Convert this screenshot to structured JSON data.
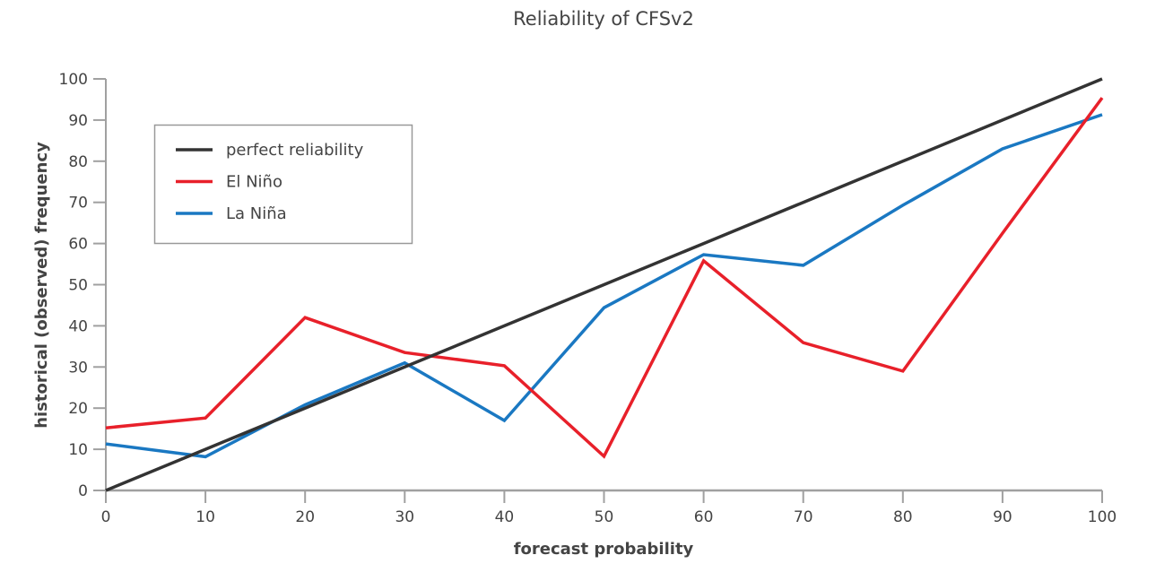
{
  "chart_data": {
    "type": "line",
    "title": "Reliability of CFSv2",
    "xlabel": "forecast probability",
    "ylabel": "historical (observed) frequency",
    "xlim": [
      0,
      100
    ],
    "ylim": [
      0,
      100
    ],
    "x": [
      0,
      10,
      20,
      30,
      40,
      50,
      60,
      70,
      80,
      90,
      100
    ],
    "xticks": [
      0,
      10,
      20,
      30,
      40,
      50,
      60,
      70,
      80,
      90,
      100
    ],
    "yticks": [
      0,
      10,
      20,
      30,
      40,
      50,
      60,
      70,
      80,
      90,
      100
    ],
    "grid": false,
    "legend_position": "top-left",
    "series": [
      {
        "name": "perfect reliability",
        "color": "#333333",
        "values": [
          0,
          10,
          20,
          30,
          40,
          50,
          60,
          70,
          80,
          90,
          100
        ]
      },
      {
        "name": "El Niño",
        "color": "#e8202a",
        "values": [
          15.2,
          17.6,
          42,
          33.5,
          30.3,
          8.3,
          55.8,
          35.9,
          29,
          62.5,
          95.4
        ]
      },
      {
        "name": "La Niña",
        "color": "#1a78c2",
        "values": [
          11.3,
          8.2,
          20.8,
          31,
          17,
          44.4,
          57.3,
          54.7,
          69.3,
          83,
          91.3
        ]
      }
    ]
  }
}
